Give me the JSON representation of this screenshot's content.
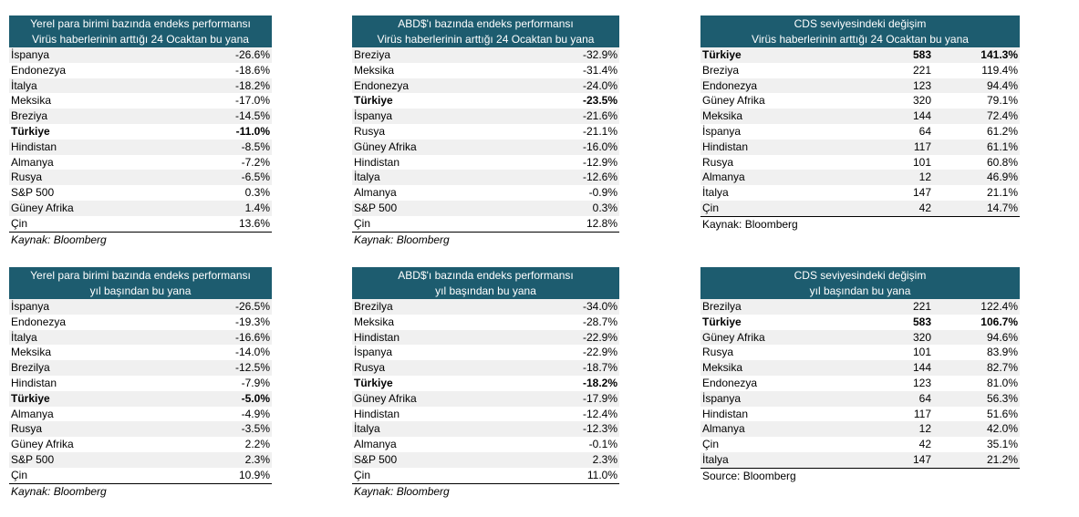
{
  "tables": {
    "t1": {
      "title1": "Yerel para birimi bazında endeks performansı",
      "title2": "Virüs haberlerinin arttığı 24 Ocaktan bu yana",
      "rows": [
        {
          "name": "İspanya",
          "value": "-26.6%"
        },
        {
          "name": "Endonezya",
          "value": "-18.6%"
        },
        {
          "name": "İtalya",
          "value": "-18.2%"
        },
        {
          "name": "Meksika",
          "value": "-17.0%"
        },
        {
          "name": "Breziya",
          "value": "-14.5%"
        },
        {
          "name": "Türkiye",
          "value": "-11.0%",
          "bold": true
        },
        {
          "name": "Hindistan",
          "value": "-8.5%"
        },
        {
          "name": "Almanya",
          "value": "-7.2%"
        },
        {
          "name": "Rusya",
          "value": "-6.5%"
        },
        {
          "name": "S&P 500",
          "value": "0.3%"
        },
        {
          "name": "Güney Afrika",
          "value": "1.4%"
        },
        {
          "name": "Çin",
          "value": "13.6%"
        }
      ],
      "source": "Kaynak: Bloomberg"
    },
    "t2": {
      "title1": "ABD$'ı bazında endeks performansı",
      "title2": "Virüs haberlerinin arttığı 24 Ocaktan bu yana",
      "rows": [
        {
          "name": "Breziya",
          "value": "-32.9%"
        },
        {
          "name": "Meksika",
          "value": "-31.4%"
        },
        {
          "name": "Endonezya",
          "value": "-24.0%"
        },
        {
          "name": "Türkiye",
          "value": "-23.5%",
          "bold": true
        },
        {
          "name": "İspanya",
          "value": "-21.6%"
        },
        {
          "name": "Rusya",
          "value": "-21.1%"
        },
        {
          "name": "Güney Afrika",
          "value": "-16.0%"
        },
        {
          "name": "Hindistan",
          "value": "-12.9%"
        },
        {
          "name": "İtalya",
          "value": "-12.6%"
        },
        {
          "name": "Almanya",
          "value": "-0.9%"
        },
        {
          "name": "S&P 500",
          "value": "0.3%"
        },
        {
          "name": "Çin",
          "value": "12.8%"
        }
      ],
      "source": "Kaynak: Bloomberg"
    },
    "t3": {
      "title1": "CDS seviyesindeki değişim",
      "title2": "Virüs haberlerinin arttığı 24 Ocaktan bu yana",
      "rows": [
        {
          "name": "Türkiye",
          "cds": "583",
          "value": "141.3%",
          "bold": true
        },
        {
          "name": "Breziya",
          "cds": "221",
          "value": "119.4%"
        },
        {
          "name": "Endonezya",
          "cds": "123",
          "value": "94.4%"
        },
        {
          "name": "Güney Afrika",
          "cds": "320",
          "value": "79.1%"
        },
        {
          "name": "Meksika",
          "cds": "144",
          "value": "72.4%"
        },
        {
          "name": "İspanya",
          "cds": "64",
          "value": "61.2%"
        },
        {
          "name": "Hindistan",
          "cds": "117",
          "value": "61.1%"
        },
        {
          "name": "Rusya",
          "cds": "101",
          "value": "60.8%"
        },
        {
          "name": "Almanya",
          "cds": "12",
          "value": "46.9%"
        },
        {
          "name": "İtalya",
          "cds": "147",
          "value": "21.1%"
        },
        {
          "name": "Çin",
          "cds": "42",
          "value": "14.7%"
        }
      ],
      "source": "Kaynak: Bloomberg"
    },
    "t4": {
      "title1": "Yerel para birimi bazında endeks performansı",
      "title2": "yıl başından bu yana",
      "rows": [
        {
          "name": "İspanya",
          "value": "-26.5%"
        },
        {
          "name": "Endonezya",
          "value": "-19.3%"
        },
        {
          "name": "İtalya",
          "value": "-16.6%"
        },
        {
          "name": "Meksika",
          "value": "-14.0%"
        },
        {
          "name": "Brezilya",
          "value": "-12.5%"
        },
        {
          "name": "Hindistan",
          "value": "-7.9%"
        },
        {
          "name": "Türkiye",
          "value": "-5.0%",
          "bold": true
        },
        {
          "name": "Almanya",
          "value": "-4.9%"
        },
        {
          "name": "Rusya",
          "value": "-3.5%"
        },
        {
          "name": "Güney Afrika",
          "value": "2.2%"
        },
        {
          "name": "S&P 500",
          "value": "2.3%"
        },
        {
          "name": "Çin",
          "value": "10.9%"
        }
      ],
      "source": "Kaynak: Bloomberg"
    },
    "t5": {
      "title1": "ABD$'ı bazında endeks performansı",
      "title2": "yıl başından bu yana",
      "rows": [
        {
          "name": "Brezilya",
          "value": "-34.0%"
        },
        {
          "name": "Meksika",
          "value": "-28.7%"
        },
        {
          "name": "Hindistan",
          "value": "-22.9%"
        },
        {
          "name": "İspanya",
          "value": "-22.9%"
        },
        {
          "name": "Rusya",
          "value": "-18.7%"
        },
        {
          "name": "Türkiye",
          "value": "-18.2%",
          "bold": true
        },
        {
          "name": "Güney Afrika",
          "value": "-17.9%"
        },
        {
          "name": "Hindistan",
          "value": "-12.4%"
        },
        {
          "name": "İtalya",
          "value": "-12.3%"
        },
        {
          "name": "Almanya",
          "value": "-0.1%"
        },
        {
          "name": "S&P 500",
          "value": "2.3%"
        },
        {
          "name": "Çin",
          "value": "11.0%"
        }
      ],
      "source": "Kaynak: Bloomberg"
    },
    "t6": {
      "title1": "CDS seviyesindeki değişim",
      "title2": "yıl başından bu yana",
      "rows": [
        {
          "name": "Brezilya",
          "cds": "221",
          "value": "122.4%"
        },
        {
          "name": "Türkiye",
          "cds": "583",
          "value": "106.7%",
          "bold": true
        },
        {
          "name": "Güney Afrika",
          "cds": "320",
          "value": "94.6%"
        },
        {
          "name": "Rusya",
          "cds": "101",
          "value": "83.9%"
        },
        {
          "name": "Meksika",
          "cds": "144",
          "value": "82.7%"
        },
        {
          "name": "Endonezya",
          "cds": "123",
          "value": "81.0%"
        },
        {
          "name": "İspanya",
          "cds": "64",
          "value": "56.3%"
        },
        {
          "name": "Hindistan",
          "cds": "117",
          "value": "51.6%"
        },
        {
          "name": "Almanya",
          "cds": "12",
          "value": "42.0%"
        },
        {
          "name": "Çin",
          "cds": "42",
          "value": "35.1%"
        },
        {
          "name": "İtalya",
          "cds": "147",
          "value": "21.2%"
        }
      ],
      "source": "Source: Bloomberg"
    }
  }
}
